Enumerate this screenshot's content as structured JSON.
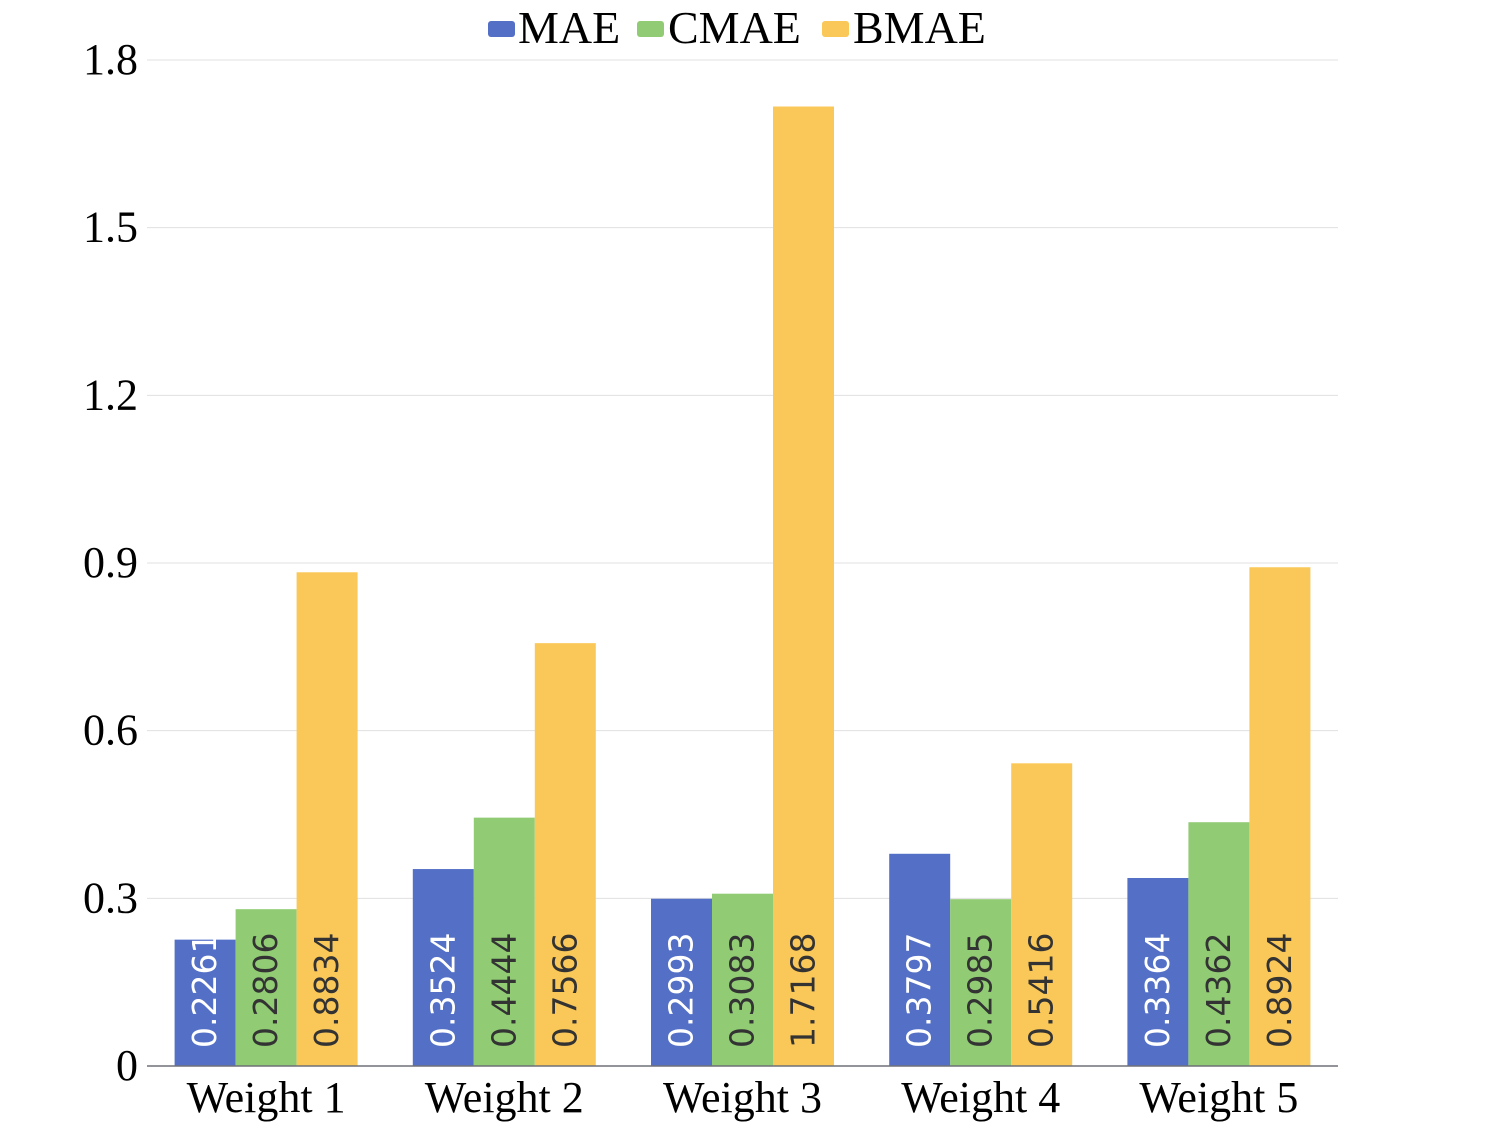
{
  "chart_data": {
    "type": "bar",
    "title": "",
    "xlabel": "",
    "ylabel": "",
    "ylim": [
      0,
      1.8
    ],
    "yticks": [
      "0",
      "0.3",
      "0.6",
      "0.9",
      "1.2",
      "1.5",
      "1.8"
    ],
    "ytick_values": [
      0,
      0.3,
      0.6,
      0.9,
      1.2,
      1.5,
      1.8
    ],
    "grid": true,
    "legend_position": "top-center",
    "categories": [
      "Weight 1",
      "Weight 2",
      "Weight 3",
      "Weight 4",
      "Weight 5"
    ],
    "series": [
      {
        "name": "MAE",
        "color": "#5470c6",
        "label_color": "#ffffff",
        "values": [
          0.2261,
          0.3524,
          0.2993,
          0.3797,
          0.3364
        ],
        "labels": [
          "0.2261",
          "0.3524",
          "0.2993",
          "0.3797",
          "0.3364"
        ]
      },
      {
        "name": "CMAE",
        "color": "#91cc75",
        "label_color": "#333333",
        "values": [
          0.2806,
          0.4444,
          0.3083,
          0.2985,
          0.4362
        ],
        "labels": [
          "0.2806",
          "0.4444",
          "0.3083",
          "0.2985",
          "0.4362"
        ]
      },
      {
        "name": "BMAE",
        "color": "#fac858",
        "label_color": "#333333",
        "values": [
          0.8834,
          0.7566,
          1.7168,
          0.5416,
          0.8924
        ],
        "labels": [
          "0.8834",
          "0.7566",
          "1.7168",
          "0.5416",
          "0.8924"
        ]
      }
    ]
  }
}
